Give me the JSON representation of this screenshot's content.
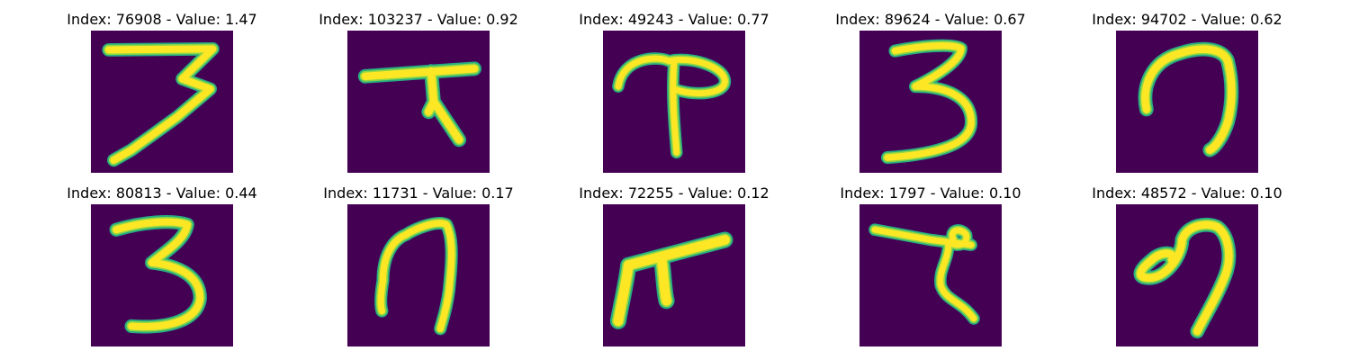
{
  "figure": {
    "panels": [
      {
        "title": "Index: 76908 - Value: 1.47",
        "glyph": "digit-3-angular-icon"
      },
      {
        "title": "Index: 103237 - Value: 0.92",
        "glyph": "t-bar-glyph-icon"
      },
      {
        "title": "Index: 49243 - Value: 0.77",
        "glyph": "loop-t-glyph-icon"
      },
      {
        "title": "Index: 89624 - Value: 0.67",
        "glyph": "digit-3-icon"
      },
      {
        "title": "Index: 94702 - Value: 0.62",
        "glyph": "hook-glyph-icon"
      },
      {
        "title": "Index: 80813 - Value: 0.44",
        "glyph": "digit-3-icon"
      },
      {
        "title": "Index: 11731 - Value: 0.17",
        "glyph": "digit-7-curved-icon"
      },
      {
        "title": "Index: 72255 - Value: 0.12",
        "glyph": "pi-glyph-icon"
      },
      {
        "title": "Index: 1797 - Value: 0.10",
        "glyph": "t-loop-glyph-icon"
      },
      {
        "title": "Index: 48572 - Value: 0.10",
        "glyph": "curl-glyph-icon"
      }
    ],
    "colors": {
      "background": "#440154",
      "edge": "#27ad81",
      "mid": "#8fd744",
      "core": "#fde725"
    }
  }
}
